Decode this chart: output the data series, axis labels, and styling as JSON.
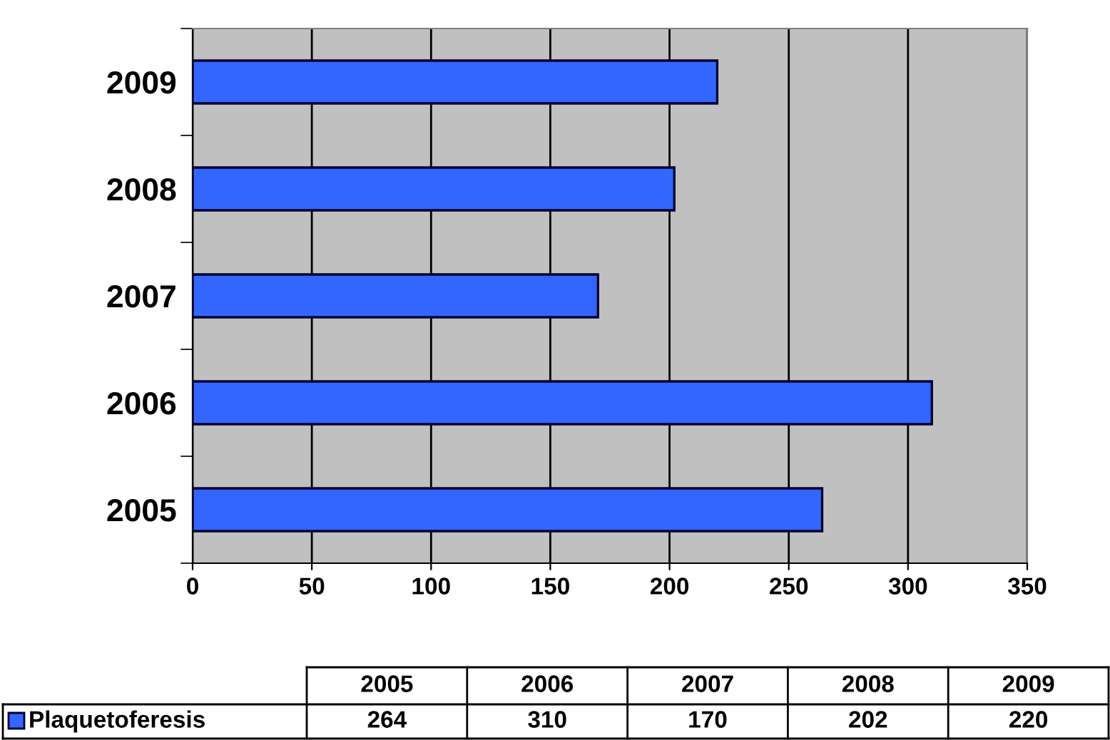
{
  "chart_data": {
    "type": "bar",
    "orientation": "horizontal",
    "categories": [
      "2009",
      "2008",
      "2007",
      "2006",
      "2005"
    ],
    "series": [
      {
        "name": "Plaquetoferesis",
        "color": "#3366ff",
        "values": [
          220,
          202,
          170,
          310,
          264
        ]
      }
    ],
    "annotations": [
      "264",
      "310",
      "170",
      "202",
      "220"
    ],
    "xlim": [
      0,
      350
    ],
    "xticks": [
      0,
      50,
      100,
      150,
      200,
      250,
      300,
      350
    ],
    "grid": "x",
    "legend": "bottom"
  }
}
